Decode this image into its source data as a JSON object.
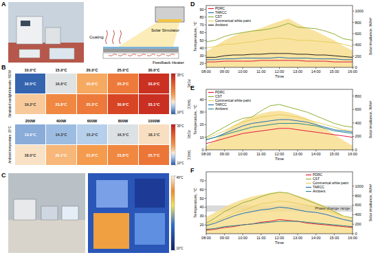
{
  "panel_labels": [
    "A",
    "B",
    "C",
    "D",
    "E",
    "F"
  ],
  "panel_a": {
    "labels": [
      "Coating",
      "Solar Simulator",
      "Feedback Heater"
    ]
  },
  "panel_b": {
    "colorbar": {
      "range": [
        10,
        35
      ],
      "ticks": [
        {
          "value": 35,
          "label": "35°C"
        },
        {
          "value": 10,
          "label": "10°C"
        }
      ]
    },
    "row_names": [
      "PDRC",
      "TARCC"
    ],
    "blocks": [
      {
        "side_label": "Simulated sunlight intensity: 800W",
        "columns": [
          "10.0°C",
          "15.0°C",
          "20.0°C",
          "25.0°C",
          "30.0°C"
        ],
        "rows": [
          [
            {
              "value": 10.5,
              "label": "10.5°C"
            },
            {
              "value": 16.6,
              "label": "16.6°C"
            },
            {
              "value": 20.8,
              "label": "20.8°C"
            },
            {
              "value": 25.3,
              "label": "25.3°C"
            },
            {
              "value": 33.0,
              "label": "33.0°C"
            }
          ],
          [
            {
              "value": 19.2,
              "label": "19.2°C"
            },
            {
              "value": 23.8,
              "label": "23.8°C"
            },
            {
              "value": 25.3,
              "label": "25.3°C"
            },
            {
              "value": 30.9,
              "label": "30.9°C"
            },
            {
              "value": 33.1,
              "label": "33.1°C"
            }
          ]
        ]
      },
      {
        "side_label": "Ambient temperature: 15°C",
        "columns": [
          "200W",
          "400W",
          "600W",
          "800W",
          "1000W"
        ],
        "rows": [
          [
            {
              "value": 13.6,
              "label": "13.6°C"
            },
            {
              "value": 14.3,
              "label": "14.3°C"
            },
            {
              "value": 15.2,
              "label": "15.2°C"
            },
            {
              "value": 16.5,
              "label": "16.5°C"
            },
            {
              "value": 18.1,
              "label": "18.1°C"
            }
          ],
          [
            {
              "value": 18.0,
              "label": "18.0°C"
            },
            {
              "value": 20.1,
              "label": "20.1°C"
            },
            {
              "value": 21.8,
              "label": "21.8°C"
            },
            {
              "value": 23.8,
              "label": "23.8°C"
            },
            {
              "value": 25.7,
              "label": "25.7°C"
            }
          ]
        ]
      }
    ]
  },
  "panel_c": {
    "colorbar": {
      "range": [
        10,
        49
      ],
      "ticks": [
        {
          "value": 49,
          "label": "49°C"
        },
        {
          "value": 10,
          "label": "10°C"
        }
      ]
    }
  },
  "chart_data": [
    {
      "type": "line",
      "x_label": "Time",
      "y_label": "Temperature, °C",
      "y2_label": "Solar irradiance, W/m²",
      "categories": [
        "08:00",
        null,
        "09:00",
        null,
        "10:00",
        null,
        "11:00",
        null,
        "12:00",
        null,
        "13:00",
        null,
        "14:00",
        null,
        "15:00",
        null,
        "16:00"
      ],
      "ylim": [
        15,
        95
      ],
      "yticks": [
        20,
        30,
        40,
        50,
        60,
        70,
        80,
        90
      ],
      "y2lim": [
        0,
        1100
      ],
      "y2ticks": [
        0,
        200,
        400,
        600,
        800,
        1000
      ],
      "grid": false,
      "legend": "upper left",
      "series": [
        {
          "type": "area",
          "axis": "y2",
          "color": "#f7dc8a",
          "values": [
            280,
            380,
            480,
            560,
            620,
            650,
            700,
            760,
            820,
            870,
            780,
            700,
            640,
            560,
            480,
            380,
            300
          ]
        },
        {
          "name": "PDRC",
          "color": "#e31a3b",
          "values": [
            22,
            22,
            23,
            23,
            23,
            23,
            24,
            24,
            24,
            24,
            24,
            23,
            23,
            23,
            22,
            22,
            22
          ]
        },
        {
          "name": "TARCC",
          "color": "#1f6fb5",
          "values": [
            25,
            25,
            26,
            26,
            27,
            27,
            27,
            27,
            28,
            27,
            27,
            27,
            26,
            26,
            26,
            25,
            25
          ]
        },
        {
          "name": "CST",
          "color": "#8fb035",
          "values": [
            48,
            50,
            55,
            58,
            60,
            62,
            63,
            65,
            68,
            72,
            67,
            66,
            65,
            62,
            58,
            52,
            50
          ]
        },
        {
          "name": "Commerical white paint",
          "color": "#e6cf5c",
          "values": [
            40,
            42,
            45,
            45,
            47,
            48,
            50,
            52,
            53,
            52,
            50,
            50,
            49,
            48,
            47,
            45,
            42
          ]
        },
        {
          "name": "Ambient",
          "color": "#222222",
          "values": [
            28,
            28,
            30,
            31,
            31,
            32,
            32,
            33,
            33,
            33,
            32,
            32,
            31,
            31,
            30,
            29,
            28
          ]
        }
      ]
    },
    {
      "type": "line",
      "x_label": "Time",
      "y_label": "Temperature, °C",
      "y2_label": "Solar irradiance, W/m²",
      "categories": [
        "08:00",
        null,
        "09:00",
        null,
        "10:00",
        null,
        "11:00",
        null,
        "12:00",
        null,
        "13:00",
        null,
        "14:00",
        null,
        "15:00",
        null,
        "16:00"
      ],
      "ylim": [
        0,
        48
      ],
      "yticks": [
        0,
        10,
        20,
        30,
        40
      ],
      "y2lim": [
        0,
        900
      ],
      "y2ticks": [
        0,
        200,
        400,
        600,
        800
      ],
      "grid": false,
      "legend": "upper left",
      "series": [
        {
          "type": "area",
          "axis": "y2",
          "color": "#f7dc8a",
          "values": [
            50,
            150,
            260,
            360,
            440,
            500,
            540,
            570,
            580,
            560,
            520,
            470,
            400,
            320,
            230,
            140,
            60
          ]
        },
        {
          "name": "PDRC",
          "color": "#e31a3b",
          "values": [
            5,
            7,
            9,
            11,
            13,
            14,
            15,
            16,
            17,
            17,
            16,
            15,
            14,
            13,
            12,
            11,
            10
          ]
        },
        {
          "name": "CST",
          "color": "#8fb035",
          "values": [
            10,
            14,
            18,
            22,
            25,
            26,
            31,
            35,
            36,
            34,
            32,
            30,
            27,
            24,
            21,
            19,
            18
          ]
        },
        {
          "name": "Commerical white paint",
          "color": "#e6cf5c",
          "values": [
            9,
            12,
            15,
            19,
            22,
            24,
            26,
            27,
            28,
            27,
            26,
            24,
            22,
            20,
            18,
            16,
            15
          ]
        },
        {
          "name": "TARCC",
          "color": "#1f6fb5",
          "values": [
            8,
            10,
            13,
            16,
            19,
            21,
            22,
            23,
            24,
            24,
            23,
            22,
            20,
            18,
            16,
            15,
            14
          ]
        },
        {
          "name": "Ambient",
          "color": "#2a8c8c",
          "values": [
            8,
            10,
            12,
            14,
            16,
            18,
            19,
            20,
            21,
            21,
            21,
            20,
            19,
            17,
            15,
            14,
            13
          ]
        }
      ]
    },
    {
      "type": "line",
      "x_label": "Time",
      "y_label": "Temperature, °C",
      "y2_label": "Solar irradiance, W/m²",
      "categories": [
        "08:00",
        null,
        "09:00",
        null,
        "10:00",
        null,
        "11:00",
        null,
        "12:00",
        null,
        "13:00",
        null,
        "14:00",
        null,
        "15:00",
        null,
        "16:00"
      ],
      "ylim": [
        10,
        80
      ],
      "yticks": [
        20,
        30,
        40,
        50,
        60,
        70
      ],
      "y2lim": [
        0,
        1300
      ],
      "y2ticks": [
        0,
        200,
        400,
        600,
        800,
        1000
      ],
      "grid": false,
      "legend": "upper right",
      "annotations": [
        {
          "text": "Phase change range",
          "y_range": [
            35,
            42
          ]
        }
      ],
      "series": [
        {
          "type": "area",
          "axis": "y2",
          "color": "#f7dc8a",
          "values": [
            350,
            450,
            560,
            650,
            720,
            780,
            820,
            860,
            880,
            850,
            800,
            740,
            660,
            580,
            480,
            380,
            300
          ]
        },
        {
          "name": "PDRC",
          "color": "#e31a3b",
          "values": [
            14,
            15,
            17,
            18,
            20,
            21,
            23,
            24,
            26,
            25,
            24,
            22,
            21,
            20,
            19,
            18,
            17
          ]
        },
        {
          "name": "CST",
          "color": "#8fb035",
          "values": [
            22,
            28,
            35,
            40,
            45,
            48,
            52,
            55,
            57,
            56,
            52,
            48,
            44,
            40,
            35,
            30,
            28
          ]
        },
        {
          "name": "Commerical white paint",
          "color": "#e6cf5c",
          "values": [
            20,
            24,
            28,
            33,
            36,
            40,
            44,
            45,
            47,
            46,
            44,
            42,
            40,
            37,
            33,
            30,
            27
          ]
        },
        {
          "name": "TARCC",
          "color": "#1f6fb5",
          "values": [
            19,
            22,
            26,
            30,
            33,
            35,
            37,
            38,
            40,
            39,
            37,
            35,
            34,
            32,
            29,
            26,
            24
          ]
        },
        {
          "name": "Ambient",
          "color": "#2a8c8c",
          "values": [
            15,
            16,
            18,
            19,
            20,
            21,
            22,
            23,
            24,
            24,
            24,
            23,
            22,
            21,
            20,
            19,
            18
          ]
        }
      ]
    }
  ]
}
